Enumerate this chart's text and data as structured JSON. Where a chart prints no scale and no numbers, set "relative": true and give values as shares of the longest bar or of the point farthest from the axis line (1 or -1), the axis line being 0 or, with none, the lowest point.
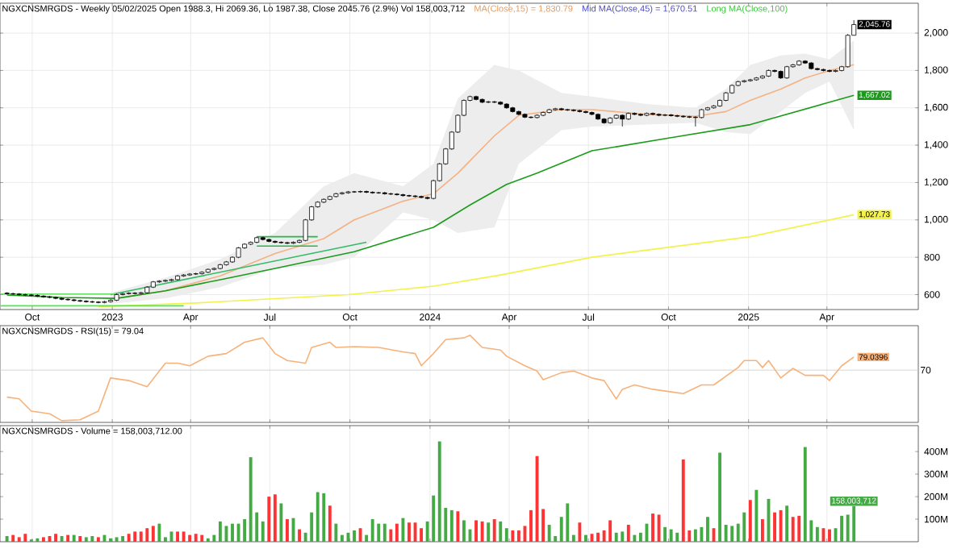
{
  "chart_data": [
    {
      "type": "candlestick",
      "title": "NGXCNSMRGDS - Weekly 05/02/2025 Open 1988.3, Hi 2069.36, Lo 1987.38, Close 2045.76 (2.9%) Vol 158,003,712",
      "color": "#000000",
      "x": [
        "2022-09-02",
        "2022-09-09",
        "2022-09-16",
        "2022-09-23",
        "2022-09-30",
        "2022-10-07",
        "2022-10-14",
        "2022-10-21",
        "2022-10-28",
        "2022-11-04",
        "2022-11-11",
        "2022-11-18",
        "2022-11-25",
        "2022-12-02",
        "2022-12-09",
        "2022-12-16",
        "2022-12-23",
        "2022-12-30",
        "2023-01-06",
        "2023-01-13",
        "2023-01-20",
        "2023-01-27",
        "2023-02-03",
        "2023-02-10",
        "2023-02-17",
        "2023-02-24",
        "2023-03-03",
        "2023-03-10",
        "2023-03-17",
        "2023-03-24",
        "2023-03-31",
        "2023-04-07",
        "2023-04-14",
        "2023-04-21",
        "2023-04-28",
        "2023-05-05",
        "2023-05-12",
        "2023-05-19",
        "2023-05-26",
        "2023-06-02",
        "2023-06-09",
        "2023-06-16",
        "2023-06-23",
        "2023-06-30",
        "2023-07-07",
        "2023-07-14",
        "2023-07-21",
        "2023-07-28",
        "2023-08-04",
        "2023-08-11",
        "2023-08-18",
        "2023-08-25",
        "2023-09-01",
        "2023-09-08",
        "2023-09-15",
        "2023-09-22",
        "2023-09-29",
        "2023-10-06",
        "2023-10-13",
        "2023-10-20",
        "2023-10-27",
        "2023-11-03",
        "2023-11-10",
        "2023-11-17",
        "2023-11-24",
        "2023-12-01",
        "2023-12-08",
        "2023-12-15",
        "2023-12-22",
        "2023-12-29",
        "2024-01-05",
        "2024-01-12",
        "2024-01-19",
        "2024-01-26",
        "2024-02-02",
        "2024-02-09",
        "2024-02-16",
        "2024-02-23",
        "2024-03-01",
        "2024-03-08",
        "2024-03-15",
        "2024-03-22",
        "2024-03-29",
        "2024-04-05",
        "2024-04-12",
        "2024-04-19",
        "2024-04-26",
        "2024-05-03",
        "2024-05-10",
        "2024-05-17",
        "2024-05-24",
        "2024-05-31",
        "2024-06-07",
        "2024-06-14",
        "2024-06-21",
        "2024-06-28",
        "2024-07-05",
        "2024-07-12",
        "2024-07-19",
        "2024-07-26",
        "2024-08-02",
        "2024-08-09",
        "2024-08-16",
        "2024-08-23",
        "2024-08-30",
        "2024-09-06",
        "2024-09-13",
        "2024-09-20",
        "2024-09-27",
        "2024-10-04",
        "2024-10-11",
        "2024-10-18",
        "2024-10-25",
        "2024-11-01",
        "2024-11-08",
        "2024-11-15",
        "2024-11-22",
        "2024-11-29",
        "2024-12-06",
        "2024-12-13",
        "2024-12-20",
        "2024-12-27",
        "2025-01-03",
        "2025-01-10",
        "2025-01-17",
        "2025-01-24",
        "2025-01-31",
        "2025-02-07",
        "2025-02-14",
        "2025-02-21",
        "2025-02-28",
        "2025-03-07",
        "2025-03-14",
        "2025-03-21",
        "2025-03-28",
        "2025-04-04",
        "2025-04-11",
        "2025-04-18",
        "2025-04-25",
        "2025-05-02"
      ],
      "ohlc": [
        [
          608,
          613,
          600,
          605
        ],
        [
          605,
          610,
          598,
          603
        ],
        [
          603,
          608,
          595,
          600
        ],
        [
          600,
          605,
          593,
          598
        ],
        [
          598,
          603,
          591,
          596
        ],
        [
          596,
          601,
          587,
          592
        ],
        [
          592,
          597,
          583,
          588
        ],
        [
          588,
          593,
          580,
          585
        ],
        [
          585,
          590,
          575,
          580
        ],
        [
          580,
          585,
          570,
          575
        ],
        [
          575,
          580,
          567,
          572
        ],
        [
          572,
          577,
          563,
          568
        ],
        [
          568,
          573,
          560,
          565
        ],
        [
          565,
          570,
          557,
          562
        ],
        [
          562,
          567,
          555,
          560
        ],
        [
          560,
          565,
          553,
          558
        ],
        [
          558,
          567,
          553,
          562
        ],
        [
          562,
          575,
          557,
          570
        ],
        [
          570,
          605,
          565,
          600
        ],
        [
          600,
          610,
          595,
          605
        ],
        [
          605,
          613,
          600,
          608
        ],
        [
          608,
          613,
          601,
          606
        ],
        [
          606,
          615,
          601,
          610
        ],
        [
          610,
          645,
          605,
          640
        ],
        [
          640,
          673,
          635,
          668
        ],
        [
          668,
          677,
          663,
          672
        ],
        [
          672,
          681,
          667,
          676
        ],
        [
          676,
          685,
          671,
          680
        ],
        [
          680,
          705,
          675,
          700
        ],
        [
          700,
          710,
          695,
          705
        ],
        [
          705,
          715,
          700,
          710
        ],
        [
          710,
          717,
          705,
          712
        ],
        [
          712,
          725,
          707,
          720
        ],
        [
          720,
          740,
          715,
          735
        ],
        [
          735,
          745,
          730,
          740
        ],
        [
          740,
          765,
          735,
          760
        ],
        [
          760,
          780,
          755,
          775
        ],
        [
          775,
          805,
          770,
          800
        ],
        [
          800,
          855,
          795,
          850
        ],
        [
          850,
          875,
          845,
          870
        ],
        [
          870,
          885,
          865,
          880
        ],
        [
          880,
          910,
          875,
          905
        ],
        [
          905,
          910,
          890,
          895
        ],
        [
          895,
          900,
          880,
          885
        ],
        [
          885,
          890,
          875,
          880
        ],
        [
          880,
          885,
          873,
          878
        ],
        [
          878,
          883,
          870,
          875
        ],
        [
          875,
          885,
          870,
          880
        ],
        [
          880,
          895,
          875,
          890
        ],
        [
          890,
          1005,
          885,
          1000
        ],
        [
          1000,
          1075,
          995,
          1070
        ],
        [
          1070,
          1100,
          1065,
          1095
        ],
        [
          1095,
          1115,
          1090,
          1110
        ],
        [
          1110,
          1130,
          1105,
          1125
        ],
        [
          1125,
          1145,
          1120,
          1140
        ],
        [
          1140,
          1150,
          1135,
          1145
        ],
        [
          1145,
          1155,
          1140,
          1150
        ],
        [
          1150,
          1155,
          1145,
          1150
        ],
        [
          1150,
          1157,
          1145,
          1152
        ],
        [
          1152,
          1157,
          1143,
          1148
        ],
        [
          1148,
          1153,
          1140,
          1145
        ],
        [
          1145,
          1150,
          1140,
          1145
        ],
        [
          1145,
          1150,
          1135,
          1140
        ],
        [
          1140,
          1145,
          1133,
          1138
        ],
        [
          1138,
          1143,
          1130,
          1135
        ],
        [
          1135,
          1140,
          1125,
          1130
        ],
        [
          1130,
          1135,
          1123,
          1128
        ],
        [
          1128,
          1133,
          1120,
          1125
        ],
        [
          1125,
          1130,
          1115,
          1120
        ],
        [
          1120,
          1125,
          1110,
          1115
        ],
        [
          1115,
          1215,
          1110,
          1210
        ],
        [
          1210,
          1305,
          1205,
          1300
        ],
        [
          1300,
          1385,
          1295,
          1380
        ],
        [
          1380,
          1475,
          1375,
          1470
        ],
        [
          1470,
          1565,
          1465,
          1560
        ],
        [
          1560,
          1645,
          1555,
          1640
        ],
        [
          1640,
          1665,
          1635,
          1660
        ],
        [
          1660,
          1665,
          1640,
          1645
        ],
        [
          1645,
          1650,
          1625,
          1630
        ],
        [
          1630,
          1637,
          1625,
          1632
        ],
        [
          1632,
          1637,
          1625,
          1630
        ],
        [
          1630,
          1635,
          1615,
          1620
        ],
        [
          1620,
          1625,
          1595,
          1600
        ],
        [
          1600,
          1605,
          1575,
          1580
        ],
        [
          1580,
          1585,
          1560,
          1565
        ],
        [
          1565,
          1570,
          1545,
          1550
        ],
        [
          1550,
          1555,
          1543,
          1548
        ],
        [
          1548,
          1565,
          1543,
          1560
        ],
        [
          1560,
          1580,
          1555,
          1575
        ],
        [
          1575,
          1595,
          1570,
          1590
        ],
        [
          1590,
          1600,
          1585,
          1595
        ],
        [
          1595,
          1600,
          1585,
          1590
        ],
        [
          1590,
          1595,
          1583,
          1588
        ],
        [
          1588,
          1593,
          1580,
          1585
        ],
        [
          1585,
          1590,
          1575,
          1580
        ],
        [
          1580,
          1585,
          1570,
          1575
        ],
        [
          1575,
          1580,
          1560,
          1565
        ],
        [
          1565,
          1570,
          1535,
          1540
        ],
        [
          1540,
          1545,
          1515,
          1520
        ],
        [
          1520,
          1550,
          1515,
          1545
        ],
        [
          1545,
          1565,
          1540,
          1560
        ],
        [
          1560,
          1565,
          1500,
          1540
        ],
        [
          1540,
          1575,
          1535,
          1570
        ],
        [
          1570,
          1575,
          1560,
          1565
        ],
        [
          1565,
          1570,
          1555,
          1560
        ],
        [
          1560,
          1575,
          1555,
          1570
        ],
        [
          1570,
          1575,
          1560,
          1565
        ],
        [
          1565,
          1570,
          1555,
          1560
        ],
        [
          1560,
          1567,
          1555,
          1562
        ],
        [
          1562,
          1567,
          1553,
          1558
        ],
        [
          1558,
          1563,
          1550,
          1555
        ],
        [
          1555,
          1560,
          1547,
          1552
        ],
        [
          1552,
          1557,
          1545,
          1550
        ],
        [
          1550,
          1555,
          1500,
          1548
        ],
        [
          1548,
          1595,
          1543,
          1590
        ],
        [
          1590,
          1605,
          1585,
          1600
        ],
        [
          1600,
          1615,
          1595,
          1610
        ],
        [
          1610,
          1645,
          1605,
          1640
        ],
        [
          1640,
          1685,
          1635,
          1680
        ],
        [
          1680,
          1725,
          1675,
          1720
        ],
        [
          1720,
          1745,
          1715,
          1740
        ],
        [
          1740,
          1750,
          1735,
          1745
        ],
        [
          1745,
          1755,
          1740,
          1750
        ],
        [
          1750,
          1765,
          1745,
          1760
        ],
        [
          1760,
          1775,
          1755,
          1770
        ],
        [
          1770,
          1805,
          1765,
          1800
        ],
        [
          1800,
          1805,
          1790,
          1795
        ],
        [
          1795,
          1800,
          1755,
          1760
        ],
        [
          1760,
          1825,
          1755,
          1820
        ],
        [
          1820,
          1835,
          1815,
          1830
        ],
        [
          1830,
          1855,
          1825,
          1850
        ],
        [
          1850,
          1855,
          1835,
          1840
        ],
        [
          1840,
          1845,
          1805,
          1810
        ],
        [
          1810,
          1815,
          1800,
          1805
        ],
        [
          1805,
          1810,
          1795,
          1800
        ],
        [
          1800,
          1805,
          1790,
          1795
        ],
        [
          1795,
          1805,
          1790,
          1800
        ],
        [
          1800,
          1825,
          1795,
          1820
        ],
        [
          1820,
          1995,
          1815,
          1988.3
        ],
        [
          1988.3,
          2069.36,
          1987.38,
          2045.76
        ]
      ],
      "series": [
        {
          "type": "line",
          "color": "#f4b183",
          "x": [
            "2022-12-30",
            "2023-03-03",
            "2023-05-05",
            "2023-07-07",
            "2023-09-01",
            "2023-10-06",
            "2023-12-01",
            "2024-01-05",
            "2024-02-02",
            "2024-03-15",
            "2024-04-12",
            "2024-05-31",
            "2024-07-05",
            "2024-09-06",
            "2024-11-01",
            "2024-12-06",
            "2025-01-03",
            "2025-02-07",
            "2025-03-07",
            "2025-04-04",
            "2025-05-02"
          ],
          "values": [
            575,
            620,
            700,
            820,
            900,
            1000,
            1100,
            1140,
            1250,
            1450,
            1560,
            1590,
            1590,
            1565,
            1555,
            1580,
            1640,
            1700,
            1760,
            1800,
            1830.79
          ],
          "lower": [
            550,
            580,
            640,
            740,
            760,
            800,
            1040,
            1000,
            930,
            960,
            1300,
            1480,
            1500,
            1510,
            1520,
            1470,
            1460,
            1580,
            1680,
            1740,
            1480
          ],
          "upper": [
            610,
            690,
            790,
            930,
            1180,
            1250,
            1180,
            1300,
            1650,
            1830,
            1800,
            1680,
            1660,
            1620,
            1600,
            1700,
            1830,
            1880,
            1890,
            1860,
            1960
          ]
        },
        {
          "type": "line",
          "color": "#1a9c1a",
          "x": [
            "2022-09-02",
            "2022-11-04",
            "2023-01-06",
            "2023-03-03",
            "2023-05-05",
            "2023-07-07",
            "2023-10-06",
            "2024-01-05",
            "2024-02-16",
            "2024-03-29",
            "2024-05-03",
            "2024-07-05",
            "2024-10-04",
            "2025-01-03",
            "2025-04-04",
            "2025-05-02"
          ],
          "values": [
            598,
            585,
            580,
            620,
            680,
            740,
            830,
            960,
            1080,
            1190,
            1250,
            1370,
            1440,
            1510,
            1630,
            1667.02
          ],
          "value_labels": [
            null,
            null,
            null,
            null,
            null,
            null,
            null,
            null,
            null,
            null,
            null,
            null,
            null,
            null,
            null,
            "1,667.02"
          ]
        },
        {
          "type": "line",
          "color": "#f2f24a",
          "x": [
            "2022-12-16",
            "2023-04-07",
            "2023-09-29",
            "2024-01-05",
            "2024-03-22",
            "2024-07-05",
            "2025-01-03",
            "2025-05-02"
          ],
          "values": [
            535,
            555,
            600,
            645,
            705,
            800,
            910,
            1027.73
          ],
          "value_labels": [
            null,
            null,
            null,
            null,
            null,
            null,
            null,
            "1,027.73"
          ]
        },
        {
          "type": "line",
          "color": "#33bb66",
          "x": [
            "2022-12-30",
            "2023-10-20"
          ],
          "values": [
            600,
            880
          ]
        },
        {
          "type": "line",
          "color": "#66dd66",
          "x": [
            "2022-08-26",
            "2023-01-06"
          ],
          "values": [
            603,
            603
          ]
        },
        {
          "type": "line",
          "color": "#44ee44",
          "x": [
            "2022-08-26",
            "2023-03-24"
          ],
          "values": [
            540,
            540
          ]
        },
        {
          "type": "line",
          "color": "#22bb44",
          "x": [
            "2023-06-16",
            "2023-08-25"
          ],
          "values": [
            910,
            910
          ]
        },
        {
          "type": "line",
          "color": "#22bb44",
          "x": [
            "2023-06-16",
            "2023-08-25"
          ],
          "values": [
            860,
            860
          ]
        }
      ],
      "annotations": [
        "MA(Close,15) = 1,830.79",
        "Mid MA(Close,45) = 1,670.51",
        "Long MA(Close,100)",
        {
          "text": "2,045.76",
          "x": "2025-05-02",
          "y": 2045.76
        }
      ],
      "xlim": [
        "2022-08-25",
        "2025-07-15"
      ],
      "xticks": [
        {
          "value": "2022-10-01",
          "label": "Oct"
        },
        {
          "value": "2023-01-01",
          "label": "2023"
        },
        {
          "value": "2023-04-01",
          "label": "Apr"
        },
        {
          "value": "2023-07-01",
          "label": "Jul"
        },
        {
          "value": "2023-10-01",
          "label": "Oct"
        },
        {
          "value": "2024-01-01",
          "label": "2024"
        },
        {
          "value": "2024-04-01",
          "label": "Apr"
        },
        {
          "value": "2024-07-01",
          "label": "Jul"
        },
        {
          "value": "2024-10-01",
          "label": "Oct"
        },
        {
          "value": "2025-01-01",
          "label": "2025"
        },
        {
          "value": "2025-04-01",
          "label": "Apr"
        }
      ],
      "ylim": [
        520,
        2160
      ],
      "yticks": [
        600,
        800,
        {
          "value": 1000,
          "label": "1,000"
        },
        {
          "value": 1200,
          "label": "1,200"
        },
        {
          "value": 1400,
          "label": "1,400"
        },
        {
          "value": 1600,
          "label": "1,600"
        },
        {
          "value": 1800,
          "label": "1,800"
        },
        {
          "value": 2000,
          "label": "2,000"
        }
      ],
      "grid": true
    },
    {
      "type": "line",
      "title": "NGXCNSMRGDS - RSI(15) = 79.04",
      "series": [
        {
          "color": "#f7b27a",
          "x": [
            "2022-09-02",
            "2022-09-16",
            "2022-09-30",
            "2022-10-21",
            "2022-11-04",
            "2022-11-25",
            "2022-12-16",
            "2022-12-30",
            "2023-01-20",
            "2023-02-10",
            "2023-03-03",
            "2023-03-17",
            "2023-03-31",
            "2023-04-21",
            "2023-05-12",
            "2023-06-02",
            "2023-06-23",
            "2023-07-07",
            "2023-07-21",
            "2023-08-11",
            "2023-08-18",
            "2023-09-08",
            "2023-09-15",
            "2023-10-06",
            "2023-11-03",
            "2023-12-01",
            "2023-12-15",
            "2023-12-22",
            "2024-01-05",
            "2024-01-19",
            "2024-02-09",
            "2024-02-16",
            "2024-03-01",
            "2024-03-22",
            "2024-03-29",
            "2024-04-19",
            "2024-05-03",
            "2024-05-10",
            "2024-05-31",
            "2024-06-14",
            "2024-07-05",
            "2024-07-19",
            "2024-08-02",
            "2024-08-09",
            "2024-08-23",
            "2024-09-13",
            "2024-10-04",
            "2024-10-18",
            "2024-11-08",
            "2024-11-22",
            "2024-12-20",
            "2024-12-27",
            "2025-01-10",
            "2025-01-17",
            "2025-01-24",
            "2025-02-07",
            "2025-02-21",
            "2025-03-07",
            "2025-03-28",
            "2025-04-04",
            "2025-04-18",
            "2025-05-02"
          ],
          "values": [
            0.29,
            0.27,
            0.13,
            0.1,
            0.02,
            0.03,
            0.13,
            0.51,
            0.48,
            0.41,
            0.68,
            0.68,
            0.65,
            0.76,
            0.79,
            0.92,
            0.97,
            0.79,
            0.71,
            0.68,
            0.86,
            0.92,
            0.86,
            0.87,
            0.86,
            0.81,
            0.79,
            0.65,
            0.79,
            0.95,
            0.97,
            1,
            0.86,
            0.83,
            0.76,
            0.65,
            0.59,
            0.49,
            0.57,
            0.59,
            0.51,
            0.48,
            0.27,
            0.38,
            0.43,
            0.38,
            0.35,
            0.33,
            0.43,
            0.43,
            0.63,
            0.71,
            0.71,
            0.63,
            0.71,
            0.51,
            0.62,
            0.54,
            0.54,
            0.48,
            0.65,
            0.75
          ]
        }
      ],
      "relative": true,
      "annotations": [
        "79.0396",
        "70"
      ],
      "ref_lines": [
        {
          "axis": "y",
          "value": 0.6
        }
      ],
      "xlim": [
        "2022-08-25",
        "2025-07-15"
      ],
      "xticks": [
        {
          "value": "2022-10-01",
          "label": null
        },
        {
          "value": "2023-01-01",
          "label": null
        },
        {
          "value": "2023-04-01",
          "label": null
        },
        {
          "value": "2023-07-01",
          "label": null
        },
        {
          "value": "2023-10-01",
          "label": null
        },
        {
          "value": "2024-01-01",
          "label": null
        },
        {
          "value": "2024-04-01",
          "label": null
        },
        {
          "value": "2024-07-01",
          "label": null
        },
        {
          "value": "2024-10-01",
          "label": null
        },
        {
          "value": "2025-01-01",
          "label": null
        },
        {
          "value": "2025-04-01",
          "label": null
        }
      ],
      "grid": true,
      "tick_labels": "y"
    },
    {
      "type": "bar",
      "title": "NGXCNSMRGDS - Volume = 158,003,712.00",
      "x": [
        "2022-09-02",
        "2022-09-09",
        "2022-09-16",
        "2022-09-23",
        "2022-09-30",
        "2022-10-07",
        "2022-10-14",
        "2022-10-21",
        "2022-10-28",
        "2022-11-04",
        "2022-11-11",
        "2022-11-18",
        "2022-11-25",
        "2022-12-02",
        "2022-12-09",
        "2022-12-16",
        "2022-12-23",
        "2022-12-30",
        "2023-01-06",
        "2023-01-13",
        "2023-01-20",
        "2023-01-27",
        "2023-02-03",
        "2023-02-10",
        "2023-02-17",
        "2023-02-24",
        "2023-03-03",
        "2023-03-10",
        "2023-03-17",
        "2023-03-24",
        "2023-03-31",
        "2023-04-07",
        "2023-04-14",
        "2023-04-21",
        "2023-04-28",
        "2023-05-05",
        "2023-05-12",
        "2023-05-19",
        "2023-05-26",
        "2023-06-02",
        "2023-06-09",
        "2023-06-16",
        "2023-06-23",
        "2023-06-30",
        "2023-07-07",
        "2023-07-14",
        "2023-07-21",
        "2023-07-28",
        "2023-08-04",
        "2023-08-11",
        "2023-08-18",
        "2023-08-25",
        "2023-09-01",
        "2023-09-08",
        "2023-09-15",
        "2023-09-22",
        "2023-09-29",
        "2023-10-06",
        "2023-10-13",
        "2023-10-20",
        "2023-10-27",
        "2023-11-03",
        "2023-11-10",
        "2023-11-17",
        "2023-11-24",
        "2023-12-01",
        "2023-12-08",
        "2023-12-15",
        "2023-12-22",
        "2023-12-29",
        "2024-01-05",
        "2024-01-12",
        "2024-01-19",
        "2024-01-26",
        "2024-02-02",
        "2024-02-09",
        "2024-02-16",
        "2024-02-23",
        "2024-03-01",
        "2024-03-08",
        "2024-03-15",
        "2024-03-22",
        "2024-03-29",
        "2024-04-05",
        "2024-04-12",
        "2024-04-19",
        "2024-04-26",
        "2024-05-03",
        "2024-05-10",
        "2024-05-17",
        "2024-05-24",
        "2024-05-31",
        "2024-06-07",
        "2024-06-14",
        "2024-06-21",
        "2024-06-28",
        "2024-07-05",
        "2024-07-12",
        "2024-07-19",
        "2024-07-26",
        "2024-08-02",
        "2024-08-09",
        "2024-08-16",
        "2024-08-23",
        "2024-08-30",
        "2024-09-06",
        "2024-09-13",
        "2024-09-20",
        "2024-09-27",
        "2024-10-04",
        "2024-10-11",
        "2024-10-18",
        "2024-10-25",
        "2024-11-01",
        "2024-11-08",
        "2024-11-15",
        "2024-11-22",
        "2024-11-29",
        "2024-12-06",
        "2024-12-13",
        "2024-12-20",
        "2024-12-27",
        "2025-01-03",
        "2025-01-10",
        "2025-01-17",
        "2025-01-24",
        "2025-01-31",
        "2025-02-07",
        "2025-02-14",
        "2025-02-21",
        "2025-02-28",
        "2025-03-07",
        "2025-03-14",
        "2025-03-21",
        "2025-03-28",
        "2025-04-04",
        "2025-04-11",
        "2025-04-18",
        "2025-04-25",
        "2025-05-02"
      ],
      "values": [
        25000000.0,
        30000000.0,
        20000000.0,
        35000000.0,
        10000000.0,
        15000000.0,
        20000000.0,
        25000000.0,
        35000000.0,
        25000000.0,
        30000000.0,
        30000000.0,
        25000000.0,
        20000000.0,
        25000000.0,
        20000000.0,
        30000000.0,
        15000000.0,
        20000000.0,
        25000000.0,
        35000000.0,
        45000000.0,
        45000000.0,
        60000000.0,
        70000000.0,
        80000000.0,
        20000000.0,
        45000000.0,
        45000000.0,
        45000000.0,
        30000000.0,
        35000000.0,
        30000000.0,
        15000000.0,
        30000000.0,
        90000000.0,
        70000000.0,
        80000000.0,
        80000000.0,
        100000000.0,
        375000000.0,
        130000000.0,
        90000000.0,
        200000000.0,
        210000000.0,
        170000000.0,
        100000000.0,
        105000000.0,
        55000000.0,
        40000000.0,
        130000000.0,
        220000000.0,
        215000000.0,
        160000000.0,
        80000000.0,
        30000000.0,
        40000000.0,
        50000000.0,
        60000000.0,
        30000000.0,
        100000000.0,
        80000000.0,
        80000000.0,
        55000000.0,
        80000000.0,
        105000000.0,
        85000000.0,
        85000000.0,
        60000000.0,
        90000000.0,
        205000000.0,
        445000000.0,
        150000000.0,
        140000000.0,
        135000000.0,
        95000000.0,
        55000000.0,
        95000000.0,
        90000000.0,
        85000000.0,
        100000000.0,
        90000000.0,
        60000000.0,
        50000000.0,
        50000000.0,
        70000000.0,
        140000000.0,
        380000000.0,
        145000000.0,
        75000000.0,
        25000000.0,
        110000000.0,
        170000000.0,
        30000000.0,
        85000000.0,
        30000000.0,
        35000000.0,
        40000000.0,
        50000000.0,
        95000000.0,
        40000000.0,
        45000000.0,
        75000000.0,
        30000000.0,
        40000000.0,
        80000000.0,
        125000000.0,
        120000000.0,
        65000000.0,
        55000000.0,
        40000000.0,
        365000000.0,
        50000000.0,
        55000000.0,
        65000000.0,
        110000000.0,
        60000000.0,
        395000000.0,
        75000000.0,
        70000000.0,
        80000000.0,
        130000000.0,
        185000000.0,
        230000000.0,
        100000000.0,
        190000000.0,
        130000000.0,
        140000000.0,
        160000000.0,
        110000000.0,
        115000000.0,
        420000000.0,
        95000000.0,
        65000000.0,
        60000000.0,
        55000000.0,
        60000000.0,
        115000000.0,
        120000000.0,
        158003712
      ],
      "colors": [
        "#44aa44",
        "#ff3333",
        "#ff3333",
        "#ff3333",
        "#44aa44",
        "#44aa44",
        "#ff3333",
        "#ff3333",
        "#ff3333",
        "#44aa44",
        "#ff3333",
        "#44aa44",
        "#ff3333",
        "#44aa44",
        "#44aa44",
        "#ff3333",
        "#44aa44",
        "#44aa44",
        "#44aa44",
        "#44aa44",
        "#ff3333",
        "#ff3333",
        "#ff3333",
        "#ff3333",
        "#ff3333",
        "#44aa44",
        "#44aa44",
        "#44aa44",
        "#ff3333",
        "#ff3333",
        "#ff3333",
        "#ff3333",
        "#ff3333",
        "#44aa44",
        "#44aa44",
        "#44aa44",
        "#44aa44",
        "#44aa44",
        "#44aa44",
        "#44aa44",
        "#44aa44",
        "#44aa44",
        "#44aa44",
        "#ff3333",
        "#ff3333",
        "#44aa44",
        "#ff3333",
        "#44aa44",
        "#ff3333",
        "#44aa44",
        "#44aa44",
        "#44aa44",
        "#44aa44",
        "#ff3333",
        "#44aa44",
        "#44aa44",
        "#44aa44",
        "#44aa44",
        "#ff3333",
        "#44aa44",
        "#44aa44",
        "#44aa44",
        "#44aa44",
        "#ff3333",
        "#ff3333",
        "#44aa44",
        "#ff3333",
        "#ff3333",
        "#ff3333",
        "#44aa44",
        "#44aa44",
        "#44aa44",
        "#44aa44",
        "#44aa44",
        "#ff3333",
        "#44aa44",
        "#44aa44",
        "#ff3333",
        "#ff3333",
        "#44aa44",
        "#ff3333",
        "#44aa44",
        "#44aa44",
        "#ff3333",
        "#ff3333",
        "#ff3333",
        "#ff3333",
        "#ff3333",
        "#ff3333",
        "#44aa44",
        "#44aa44",
        "#44aa44",
        "#44aa44",
        "#44aa44",
        "#ff3333",
        "#44aa44",
        "#ff3333",
        "#ff3333",
        "#ff3333",
        "#ff3333",
        "#44aa44",
        "#44aa44",
        "#ff3333",
        "#44aa44",
        "#44aa44",
        "#44aa44",
        "#ff3333",
        "#ff3333",
        "#44aa44",
        "#44aa44",
        "#44aa44",
        "#ff3333",
        "#ff3333",
        "#44aa44",
        "#44aa44",
        "#44aa44",
        "#ff3333",
        "#44aa44",
        "#44aa44",
        "#44aa44",
        "#44aa44",
        "#44aa44",
        "#ff3333",
        "#44aa44",
        "#ff3333",
        "#44aa44",
        "#ff3333",
        "#ff3333",
        "#44aa44",
        "#ff3333",
        "#ff3333",
        "#44aa44",
        "#44aa44",
        "#44aa44",
        "#ff3333",
        "#ff3333",
        "#44aa44",
        "#44aa44",
        "#44aa44",
        "#44aa44"
      ],
      "value_labels": [
        null,
        null,
        null,
        null,
        null,
        null,
        null,
        null,
        null,
        null,
        null,
        null,
        null,
        null,
        null,
        null,
        null,
        null,
        null,
        null,
        null,
        null,
        null,
        null,
        null,
        null,
        null,
        null,
        null,
        null,
        null,
        null,
        null,
        null,
        null,
        null,
        null,
        null,
        null,
        null,
        null,
        null,
        null,
        null,
        null,
        null,
        null,
        null,
        null,
        null,
        null,
        null,
        null,
        null,
        null,
        null,
        null,
        null,
        null,
        null,
        null,
        null,
        null,
        null,
        null,
        null,
        null,
        null,
        null,
        null,
        null,
        null,
        null,
        null,
        null,
        null,
        null,
        null,
        null,
        null,
        null,
        null,
        null,
        null,
        null,
        null,
        null,
        null,
        null,
        null,
        null,
        null,
        null,
        null,
        null,
        null,
        null,
        null,
        null,
        null,
        null,
        null,
        null,
        null,
        null,
        null,
        null,
        null,
        null,
        null,
        null,
        null,
        null,
        null,
        null,
        null,
        null,
        null,
        null,
        null,
        null,
        null,
        null,
        null,
        null,
        null,
        null,
        null,
        null,
        null,
        null,
        null,
        null,
        null,
        null,
        null,
        null,
        null,
        null,
        "158,003,712"
      ],
      "xlim": [
        "2022-08-25",
        "2025-07-15"
      ],
      "xticks": [
        {
          "value": "2022-10-01",
          "label": null
        },
        {
          "value": "2023-01-01",
          "label": null
        },
        {
          "value": "2023-04-01",
          "label": null
        },
        {
          "value": "2023-07-01",
          "label": null
        },
        {
          "value": "2023-10-01",
          "label": null
        },
        {
          "value": "2024-01-01",
          "label": null
        },
        {
          "value": "2024-04-01",
          "label": null
        },
        {
          "value": "2024-07-01",
          "label": null
        },
        {
          "value": "2024-10-01",
          "label": null
        },
        {
          "value": "2025-01-01",
          "label": null
        },
        {
          "value": "2025-04-01",
          "label": null
        }
      ],
      "ylim": [
        0,
        515000000.0
      ],
      "yticks": [
        {
          "value": 100000000.0,
          "label": "100M"
        },
        {
          "value": 200000000.0,
          "label": "200M"
        },
        {
          "value": 300000000.0,
          "label": "300M"
        },
        {
          "value": 400000000.0,
          "label": "400M"
        }
      ],
      "grid": "x",
      "tick_labels": "y"
    }
  ]
}
